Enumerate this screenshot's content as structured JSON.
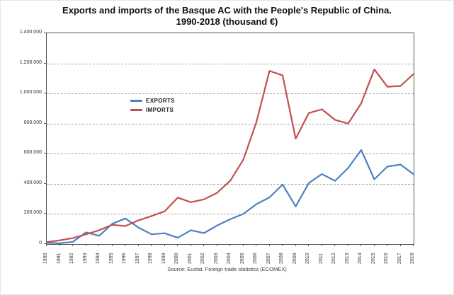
{
  "title": {
    "line1": "Exports and imports of the Basque AC with the People's Republic of China.",
    "line2": "1990-2018 (thousand €)"
  },
  "source": "Source: Eustat. Foreign trade statistics (ECOMEX)",
  "legend": [
    {
      "label": "EXPORTS",
      "color": "#4F81BD"
    },
    {
      "label": "IMPORTS",
      "color": "#C0504D"
    }
  ],
  "colors": {
    "exports_line": "#4F81BD",
    "imports_line": "#C0504D",
    "gridline": "#A6A6A6",
    "axis": "#555555"
  },
  "chart_data": {
    "type": "line",
    "title": "Exports and imports of the Basque AC with the People's Republic of China. 1990-2018 (thousand €)",
    "x": [
      1990,
      1991,
      1992,
      1993,
      1994,
      1995,
      1996,
      1997,
      1998,
      1999,
      2000,
      2001,
      2002,
      2003,
      2004,
      2005,
      2006,
      2007,
      2008,
      2009,
      2010,
      2011,
      2012,
      2013,
      2014,
      2015,
      2016,
      2017,
      2018
    ],
    "series": [
      {
        "name": "EXPORTS",
        "color": "#4F81BD",
        "values": [
          8000,
          5000,
          15000,
          78000,
          55000,
          135000,
          170000,
          110000,
          65000,
          72000,
          42000,
          92000,
          73000,
          123000,
          165000,
          200000,
          265000,
          310000,
          395000,
          250000,
          405000,
          465000,
          420000,
          505000,
          625000,
          430000,
          515000,
          528000,
          463000
        ]
      },
      {
        "name": "IMPORTS",
        "color": "#C0504D",
        "values": [
          13000,
          25000,
          40000,
          65000,
          92000,
          128000,
          120000,
          158000,
          186000,
          218000,
          308000,
          278000,
          297000,
          340000,
          420000,
          560000,
          810000,
          1150000,
          1120000,
          700000,
          870000,
          895000,
          825000,
          800000,
          935000,
          1160000,
          1045000,
          1050000,
          1130000
        ]
      }
    ],
    "xlabel": "",
    "ylabel": "",
    "ylim": [
      0,
      1400000
    ],
    "ytick_step": 200000,
    "ytick_labels": [
      "0",
      "200.000",
      "400.000",
      "600.000",
      "800.000",
      "1.000.000",
      "1.200.000",
      "1.400.000"
    ],
    "grid": "horizontal-dashed",
    "legend_position": "inside-upper-left"
  }
}
